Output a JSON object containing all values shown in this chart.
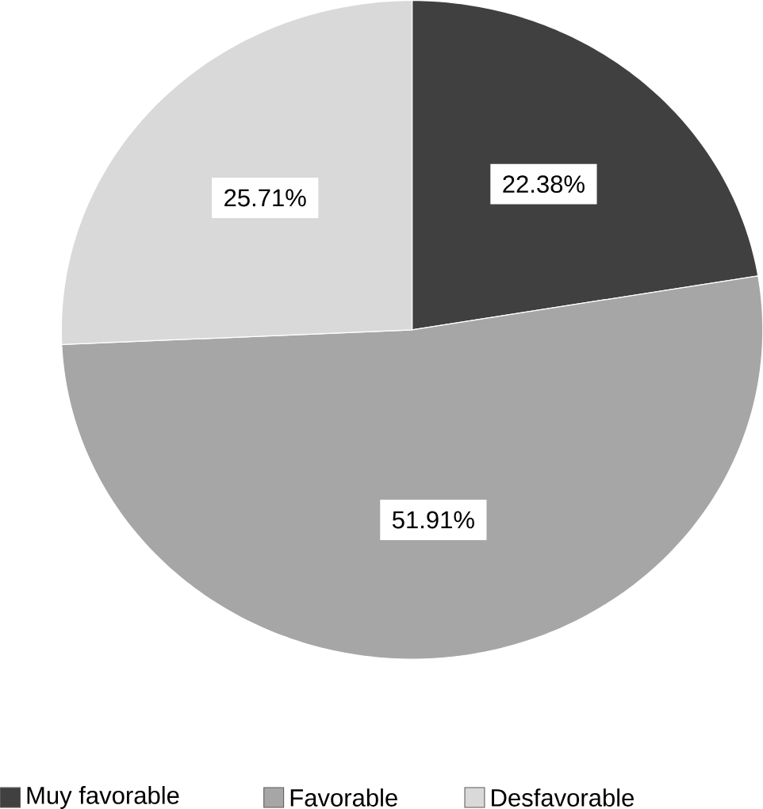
{
  "chart_data": {
    "type": "pie",
    "categories": [
      "Muy favorable",
      "Favorable",
      "Desfavorable"
    ],
    "values": [
      22.38,
      51.91,
      25.71
    ],
    "value_labels": [
      "22.38%",
      "51.91%",
      "25.71%"
    ],
    "colors": [
      "#404040",
      "#a6a6a6",
      "#d9d9d9"
    ],
    "legend": "bottom"
  }
}
